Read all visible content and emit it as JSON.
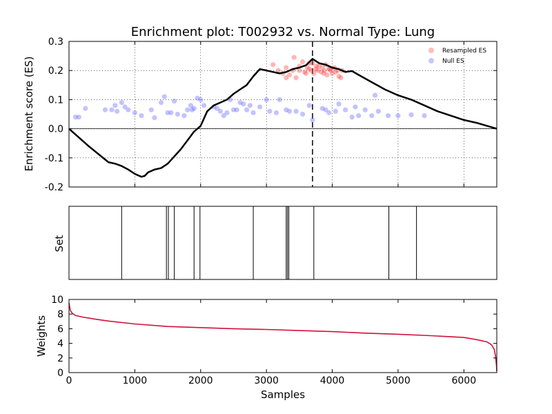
{
  "chart_data": {
    "type": "scatter",
    "title": "Enrichment plot: T002932 vs. Normal Type: Lung",
    "x_range": [
      0,
      6500
    ],
    "x_ticks": [
      0,
      1000,
      2000,
      3000,
      4000,
      5000,
      6000
    ],
    "xlabel": "Samples",
    "legend_position": "top-right",
    "colors": {
      "es_curve": "#000000",
      "resampled": "#ff4040",
      "null": "#6060ff",
      "weights": "#d0103a"
    },
    "panels": {
      "es": {
        "ylabel": "Enrichment score (ES)",
        "ylim": [
          -0.2,
          0.3
        ],
        "y_ticks": [
          "0.3",
          "0.2",
          "0.1",
          "0.0",
          "-0.1",
          "-0.2"
        ],
        "grid": true,
        "peak_x": 3700,
        "es_curve": [
          [
            0,
            0
          ],
          [
            300,
            -0.06
          ],
          [
            600,
            -0.115
          ],
          [
            700,
            -0.12
          ],
          [
            800,
            -0.128
          ],
          [
            900,
            -0.14
          ],
          [
            1000,
            -0.155
          ],
          [
            1100,
            -0.165
          ],
          [
            1150,
            -0.162
          ],
          [
            1200,
            -0.15
          ],
          [
            1300,
            -0.14
          ],
          [
            1400,
            -0.135
          ],
          [
            1500,
            -0.12
          ],
          [
            1600,
            -0.095
          ],
          [
            1700,
            -0.07
          ],
          [
            1800,
            -0.04
          ],
          [
            1900,
            -0.01
          ],
          [
            2000,
            0.01
          ],
          [
            2100,
            0.06
          ],
          [
            2200,
            0.08
          ],
          [
            2300,
            0.09
          ],
          [
            2400,
            0.1
          ],
          [
            2500,
            0.12
          ],
          [
            2600,
            0.135
          ],
          [
            2700,
            0.15
          ],
          [
            2800,
            0.18
          ],
          [
            2900,
            0.205
          ],
          [
            3000,
            0.2
          ],
          [
            3100,
            0.195
          ],
          [
            3200,
            0.19
          ],
          [
            3300,
            0.195
          ],
          [
            3400,
            0.205
          ],
          [
            3500,
            0.21
          ],
          [
            3600,
            0.218
          ],
          [
            3700,
            0.24
          ],
          [
            3800,
            0.225
          ],
          [
            3900,
            0.22
          ],
          [
            4000,
            0.21
          ],
          [
            4100,
            0.205
          ],
          [
            4200,
            0.195
          ],
          [
            4300,
            0.198
          ],
          [
            4400,
            0.185
          ],
          [
            4600,
            0.16
          ],
          [
            4800,
            0.135
          ],
          [
            5000,
            0.115
          ],
          [
            5200,
            0.1
          ],
          [
            5400,
            0.08
          ],
          [
            5600,
            0.06
          ],
          [
            5800,
            0.045
          ],
          [
            6000,
            0.03
          ],
          [
            6200,
            0.02
          ],
          [
            6500,
            0
          ]
        ],
        "resampled_es": [
          [
            3100,
            0.22
          ],
          [
            3180,
            0.2
          ],
          [
            3250,
            0.19
          ],
          [
            3300,
            0.21
          ],
          [
            3350,
            0.185
          ],
          [
            3400,
            0.2
          ],
          [
            3420,
            0.245
          ],
          [
            3450,
            0.175
          ],
          [
            3500,
            0.215
          ],
          [
            3550,
            0.23
          ],
          [
            3580,
            0.195
          ],
          [
            3600,
            0.19
          ],
          [
            3620,
            0.21
          ],
          [
            3650,
            0.205
          ],
          [
            3680,
            0.2
          ],
          [
            3700,
            0.225
          ],
          [
            3720,
            0.19
          ],
          [
            3750,
            0.205
          ],
          [
            3780,
            0.2
          ],
          [
            3800,
            0.215
          ],
          [
            3830,
            0.195
          ],
          [
            3850,
            0.21
          ],
          [
            3880,
            0.2
          ],
          [
            3900,
            0.22
          ],
          [
            3920,
            0.185
          ],
          [
            3950,
            0.205
          ],
          [
            3980,
            0.2
          ],
          [
            4000,
            0.19
          ],
          [
            4030,
            0.21
          ],
          [
            4050,
            0.195
          ],
          [
            4080,
            0.2
          ],
          [
            4100,
            0.18
          ],
          [
            4130,
            0.175
          ],
          [
            4150,
            0.2
          ],
          [
            3300,
            0.175
          ],
          [
            3500,
            0.2
          ],
          [
            3650,
            0.225
          ],
          [
            3760,
            0.215
          ],
          [
            3870,
            0.19
          ],
          [
            3960,
            0.205
          ]
        ],
        "null_es": [
          [
            100,
            0.04
          ],
          [
            150,
            0.04
          ],
          [
            250,
            0.07
          ],
          [
            550,
            0.065
          ],
          [
            650,
            0.065
          ],
          [
            700,
            0.08
          ],
          [
            730,
            0.06
          ],
          [
            800,
            0.09
          ],
          [
            850,
            0.075
          ],
          [
            900,
            0.065
          ],
          [
            1000,
            0.055
          ],
          [
            1100,
            0.045
          ],
          [
            1250,
            0.065
          ],
          [
            1300,
            0.038
          ],
          [
            1400,
            0.09
          ],
          [
            1450,
            0.11
          ],
          [
            1500,
            0.055
          ],
          [
            1550,
            0.055
          ],
          [
            1600,
            0.095
          ],
          [
            1650,
            0.05
          ],
          [
            1750,
            0.045
          ],
          [
            1800,
            0.065
          ],
          [
            1850,
            0.08
          ],
          [
            1870,
            0.065
          ],
          [
            1900,
            0.07
          ],
          [
            1950,
            0.105
          ],
          [
            2000,
            0.1
          ],
          [
            2050,
            0.08
          ],
          [
            2200,
            0.075
          ],
          [
            2250,
            0.07
          ],
          [
            2300,
            0.06
          ],
          [
            2350,
            0.045
          ],
          [
            2400,
            0.055
          ],
          [
            2450,
            0.1
          ],
          [
            2500,
            0.065
          ],
          [
            2550,
            0.065
          ],
          [
            2600,
            0.09
          ],
          [
            2650,
            0.085
          ],
          [
            2700,
            0.065
          ],
          [
            2750,
            0.08
          ],
          [
            2800,
            0.055
          ],
          [
            2900,
            0.075
          ],
          [
            3000,
            0.1
          ],
          [
            3050,
            0.06
          ],
          [
            3150,
            0.055
          ],
          [
            3200,
            0.1
          ],
          [
            3300,
            0.065
          ],
          [
            3350,
            0.06
          ],
          [
            3450,
            0.06
          ],
          [
            3550,
            0.05
          ],
          [
            3650,
            0.08
          ],
          [
            3700,
            0.03
          ],
          [
            3850,
            0.07
          ],
          [
            3900,
            0.065
          ],
          [
            3950,
            0.055
          ],
          [
            4050,
            0.06
          ],
          [
            4100,
            0.085
          ],
          [
            4200,
            0.065
          ],
          [
            4300,
            0.04
          ],
          [
            4350,
            0.075
          ],
          [
            4400,
            0.045
          ],
          [
            4500,
            0.065
          ],
          [
            4600,
            0.045
          ],
          [
            4650,
            0.115
          ],
          [
            4700,
            0.06
          ],
          [
            4850,
            0.045
          ],
          [
            5000,
            0.045
          ],
          [
            5200,
            0.048
          ],
          [
            5400,
            0.045
          ]
        ],
        "legend": {
          "resampled": "Resampled ES",
          "null": "Null ES"
        }
      },
      "set": {
        "ylabel": "Set",
        "hit_positions": [
          800,
          1480,
          1510,
          1600,
          1900,
          1990,
          2800,
          3300,
          3320,
          3340,
          3720,
          4860,
          5280
        ]
      },
      "weights": {
        "ylabel": "Weights",
        "ylim": [
          0,
          10
        ],
        "y_ticks": [
          "10",
          "8",
          "6",
          "4",
          "2",
          "0"
        ],
        "series": [
          [
            0,
            9.5
          ],
          [
            20,
            8.5
          ],
          [
            50,
            8.1
          ],
          [
            100,
            7.8
          ],
          [
            200,
            7.6
          ],
          [
            400,
            7.3
          ],
          [
            600,
            7.05
          ],
          [
            1000,
            6.65
          ],
          [
            1500,
            6.3
          ],
          [
            2000,
            6.15
          ],
          [
            2500,
            6.0
          ],
          [
            3000,
            5.9
          ],
          [
            3500,
            5.75
          ],
          [
            4000,
            5.6
          ],
          [
            4500,
            5.4
          ],
          [
            5000,
            5.25
          ],
          [
            5500,
            5.05
          ],
          [
            6000,
            4.8
          ],
          [
            6200,
            4.5
          ],
          [
            6350,
            4.2
          ],
          [
            6420,
            3.8
          ],
          [
            6460,
            3.2
          ],
          [
            6480,
            2.3
          ],
          [
            6495,
            1.0
          ],
          [
            6500,
            0.2
          ]
        ]
      }
    }
  }
}
